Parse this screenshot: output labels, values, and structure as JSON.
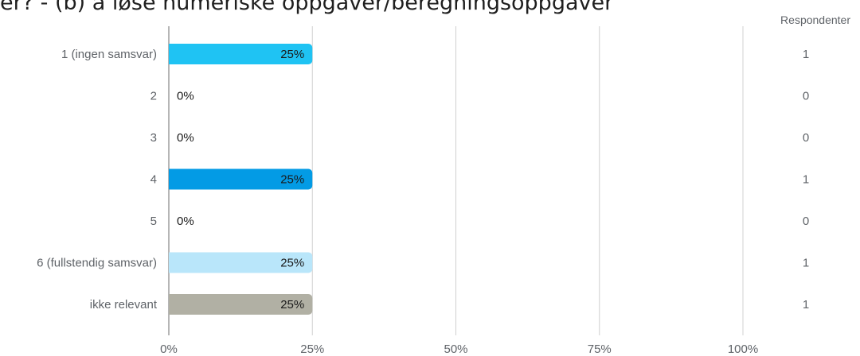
{
  "title": "er? - (b) å løse numeriske oppgaver/beregningsoppgaver",
  "column_header": "Respondenter",
  "chart_data": {
    "type": "bar",
    "orientation": "horizontal",
    "categories": [
      "1 (ingen samsvar)",
      "2",
      "3",
      "4",
      "5",
      "6 (fullstendig samsvar)",
      "ikke relevant"
    ],
    "values": [
      25,
      0,
      0,
      25,
      0,
      25,
      25
    ],
    "value_labels": [
      "25%",
      "0%",
      "0%",
      "25%",
      "0%",
      "25%",
      "25%"
    ],
    "respondents": [
      "1",
      "0",
      "0",
      "1",
      "0",
      "1",
      "1"
    ],
    "colors": [
      "#1fc3f3",
      "#1fc3f3",
      "#1fc3f3",
      "#039be5",
      "#039be5",
      "#b9e6fa",
      "#b1b0a4"
    ],
    "xlim": [
      0,
      100
    ],
    "xticks": [
      0,
      25,
      50,
      75,
      100
    ],
    "xtick_labels": [
      "0%",
      "25%",
      "50%",
      "75%",
      "100%"
    ],
    "grid": true
  }
}
